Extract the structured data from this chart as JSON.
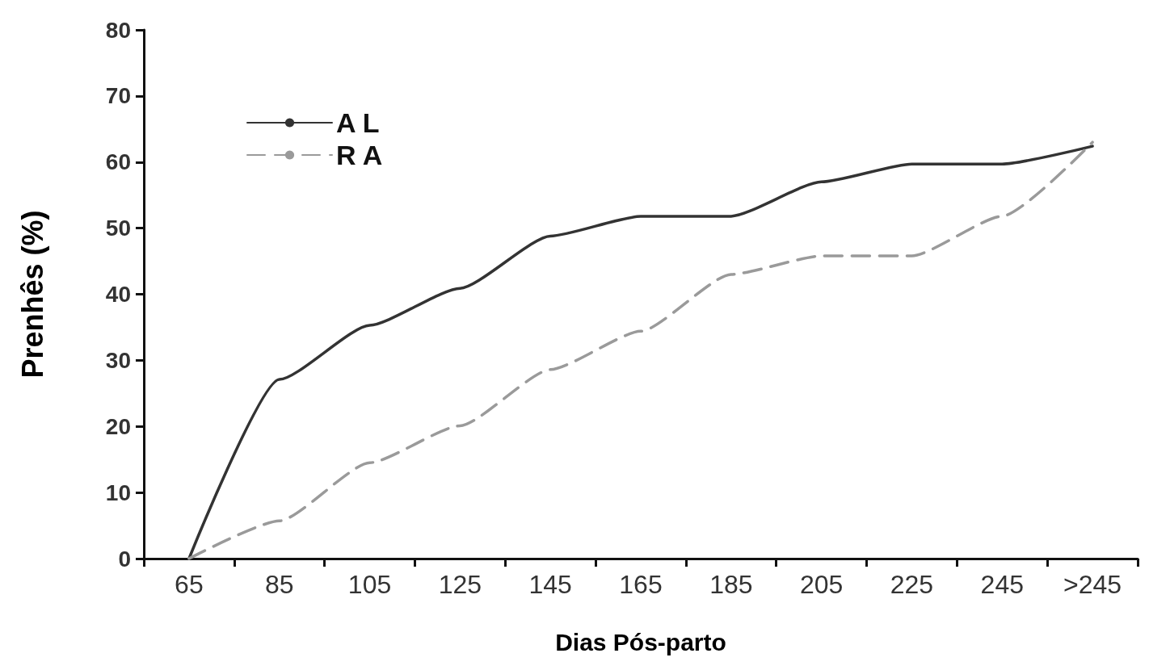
{
  "chart_data": {
    "type": "line",
    "xlabel": "Dias Pós-parto",
    "ylabel": "Prenhês (%)",
    "categories": [
      "65",
      "85",
      "105",
      "125",
      "145",
      "165",
      "185",
      "205",
      "225",
      "245",
      ">245"
    ],
    "series": [
      {
        "name": "A L",
        "color": "#333333",
        "line_style": "solid",
        "values": [
          0,
          27.1,
          35.3,
          40.9,
          48.8,
          51.8,
          51.8,
          57,
          59.7,
          59.7,
          62.4
        ]
      },
      {
        "name": "R A",
        "color": "#9a9a9a",
        "line_style": "dashed",
        "values": [
          0,
          5.7,
          14.5,
          20.1,
          28.6,
          34.4,
          43,
          45.8,
          45.8,
          51.8,
          63
        ]
      }
    ],
    "ylim": [
      0,
      80
    ],
    "yticks": [
      0,
      10,
      20,
      30,
      40,
      50,
      60,
      70,
      80
    ],
    "grid": false,
    "legend": "top left",
    "marker": "none"
  }
}
